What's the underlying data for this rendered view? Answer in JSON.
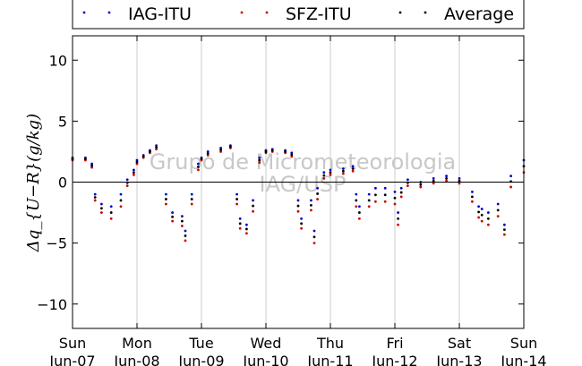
{
  "chart_data": {
    "type": "scatter",
    "title": "",
    "xlabel": "",
    "ylabel": "Δq_{U−R}(g/kg)",
    "ylim": [
      -12,
      12
    ],
    "xlim": [
      0,
      7
    ],
    "yticks": [
      -10,
      -5,
      0,
      5,
      10
    ],
    "xtick_labels": [
      {
        "day": "Sun",
        "date": "Jun-07"
      },
      {
        "day": "Mon",
        "date": "Jun-08"
      },
      {
        "day": "Tue",
        "date": "Jun-09"
      },
      {
        "day": "Wed",
        "date": "Jun-10"
      },
      {
        "day": "Thu",
        "date": "Jun-11"
      },
      {
        "day": "Fri",
        "date": "Jun-12"
      },
      {
        "day": "Sat",
        "date": "Jun-13"
      },
      {
        "day": "Sun",
        "date": "Jun-14"
      }
    ],
    "grid": "vertical",
    "legend_position": "top",
    "watermark": [
      "Grupo de Micrometeorologia",
      "IAG/USP"
    ],
    "series": [
      {
        "name": "IAG-ITU",
        "color": "#0000cc",
        "x": [
          0.0,
          0.2,
          0.3,
          0.35,
          0.45,
          0.6,
          0.75,
          0.85,
          0.95,
          1.0,
          1.1,
          1.2,
          1.3,
          1.45,
          1.55,
          1.7,
          1.75,
          1.85,
          1.95,
          2.0,
          2.1,
          2.3,
          2.45,
          2.55,
          2.6,
          2.7,
          2.8,
          2.9,
          3.0,
          3.1,
          3.3,
          3.4,
          3.5,
          3.55,
          3.7,
          3.75,
          3.8,
          3.9,
          4.0,
          4.2,
          4.35,
          4.4,
          4.45,
          4.6,
          4.7,
          4.85,
          5.0,
          5.05,
          5.1,
          5.2,
          5.4,
          5.6,
          5.8,
          6.0,
          6.2,
          6.3,
          6.35,
          6.45,
          6.6,
          6.7,
          6.8,
          7.0
        ],
        "y": [
          2.0,
          2.0,
          1.5,
          -1.0,
          -1.8,
          -2.0,
          -1.0,
          0.2,
          1.0,
          1.8,
          2.2,
          2.6,
          3.0,
          -1.0,
          -2.5,
          -2.8,
          -4.0,
          -1.0,
          1.5,
          2.0,
          2.5,
          2.8,
          3.0,
          -1.0,
          -3.0,
          -3.5,
          -1.5,
          2.0,
          2.6,
          2.7,
          2.6,
          2.4,
          -1.5,
          -3.0,
          -1.5,
          -4.0,
          -0.5,
          0.8,
          1.0,
          1.1,
          1.3,
          -1.0,
          -2.0,
          -1.0,
          -0.5,
          -0.5,
          -0.8,
          -2.5,
          -0.5,
          0.2,
          0.0,
          0.3,
          0.5,
          0.3,
          -0.8,
          -2.0,
          -2.2,
          -2.5,
          -1.8,
          -3.5,
          0.5,
          1.8
        ]
      },
      {
        "name": "SFZ-ITU",
        "color": "#cc0000",
        "x": [
          0.0,
          0.2,
          0.3,
          0.35,
          0.45,
          0.6,
          0.75,
          0.85,
          0.95,
          1.0,
          1.1,
          1.2,
          1.3,
          1.45,
          1.55,
          1.7,
          1.75,
          1.85,
          1.95,
          2.0,
          2.1,
          2.3,
          2.45,
          2.55,
          2.6,
          2.7,
          2.8,
          2.9,
          3.0,
          3.1,
          3.3,
          3.4,
          3.5,
          3.55,
          3.7,
          3.75,
          3.8,
          3.9,
          4.0,
          4.2,
          4.35,
          4.4,
          4.45,
          4.6,
          4.7,
          4.85,
          5.0,
          5.05,
          5.1,
          5.2,
          5.4,
          5.6,
          5.8,
          6.0,
          6.2,
          6.3,
          6.35,
          6.45,
          6.6,
          6.7,
          6.8,
          7.0
        ],
        "y": [
          1.8,
          1.8,
          1.2,
          -1.5,
          -2.5,
          -3.0,
          -2.0,
          -0.3,
          0.6,
          1.5,
          2.0,
          2.4,
          2.7,
          -1.8,
          -3.2,
          -3.6,
          -4.8,
          -1.8,
          1.0,
          1.8,
          2.2,
          2.5,
          2.8,
          -1.8,
          -3.8,
          -4.2,
          -2.4,
          1.6,
          2.4,
          2.5,
          2.4,
          2.1,
          -2.4,
          -3.8,
          -2.3,
          -5.0,
          -1.4,
          0.3,
          0.6,
          0.7,
          0.9,
          -2.0,
          -3.0,
          -2.0,
          -1.6,
          -1.6,
          -1.8,
          -3.5,
          -1.2,
          -0.3,
          -0.4,
          -0.1,
          0.1,
          -0.1,
          -1.6,
          -2.9,
          -3.2,
          -3.5,
          -2.8,
          -4.3,
          -0.4,
          0.8
        ]
      },
      {
        "name": "Average",
        "color": "#000000",
        "x": [
          0.0,
          0.2,
          0.3,
          0.35,
          0.45,
          0.6,
          0.75,
          0.85,
          0.95,
          1.0,
          1.1,
          1.2,
          1.3,
          1.45,
          1.55,
          1.7,
          1.75,
          1.85,
          1.95,
          2.0,
          2.1,
          2.3,
          2.45,
          2.55,
          2.6,
          2.7,
          2.8,
          2.9,
          3.0,
          3.1,
          3.3,
          3.4,
          3.5,
          3.55,
          3.7,
          3.75,
          3.8,
          3.9,
          4.0,
          4.2,
          4.35,
          4.4,
          4.45,
          4.6,
          4.7,
          4.85,
          5.0,
          5.05,
          5.1,
          5.2,
          5.4,
          5.6,
          5.8,
          6.0,
          6.2,
          6.3,
          6.35,
          6.45,
          6.6,
          6.7,
          6.8,
          7.0
        ],
        "y": [
          1.9,
          1.9,
          1.35,
          -1.25,
          -2.15,
          -2.5,
          -1.5,
          -0.05,
          0.8,
          1.65,
          2.1,
          2.5,
          2.85,
          -1.4,
          -2.85,
          -3.2,
          -4.4,
          -1.4,
          1.25,
          1.9,
          2.35,
          2.65,
          2.9,
          -1.4,
          -3.4,
          -3.85,
          -1.95,
          1.8,
          2.5,
          2.6,
          2.5,
          2.25,
          -1.95,
          -3.4,
          -1.9,
          -4.5,
          -0.95,
          0.55,
          0.8,
          0.9,
          1.1,
          -1.5,
          -2.5,
          -1.5,
          -1.05,
          -1.05,
          -1.3,
          -3.0,
          -0.85,
          -0.05,
          -0.2,
          0.1,
          0.3,
          0.1,
          -1.2,
          -2.45,
          -2.7,
          -3.0,
          -2.3,
          -3.9,
          0.05,
          1.3
        ]
      }
    ]
  }
}
